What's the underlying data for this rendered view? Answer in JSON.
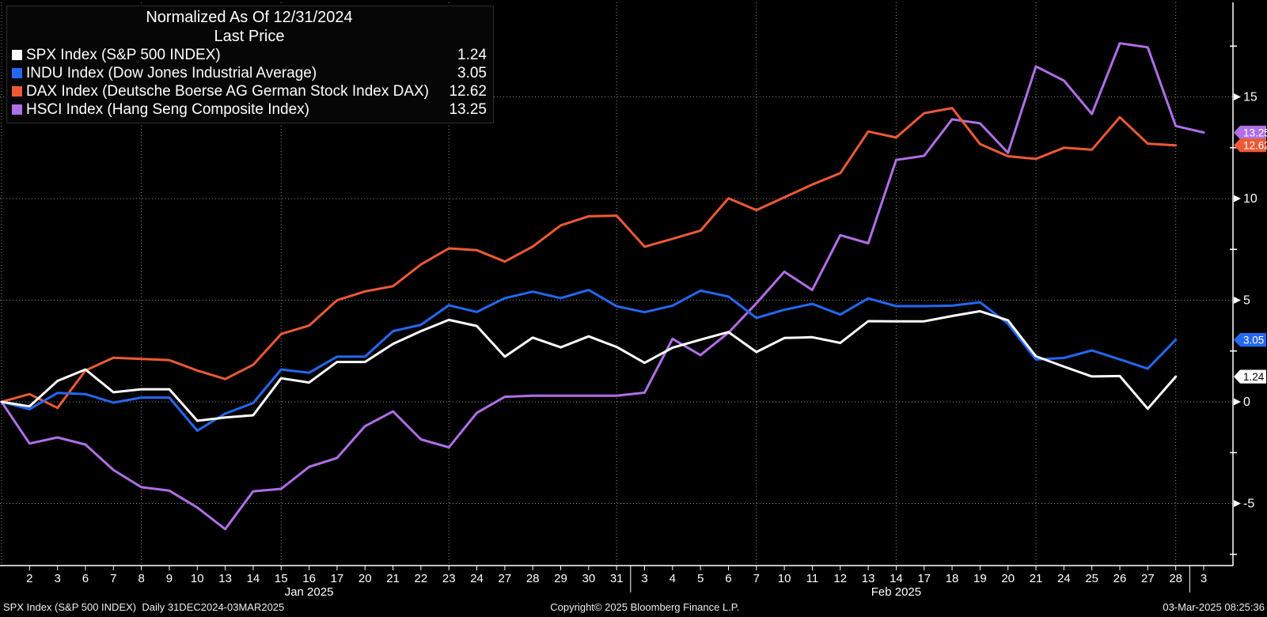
{
  "legend": {
    "title": "Normalized As Of 12/31/2024",
    "subtitle": "Last Price",
    "items": [
      {
        "label": "SPX Index (S&P 500 INDEX)",
        "value": "1.24",
        "color": "#ffffff"
      },
      {
        "label": "INDU Index (Dow Jones Industrial Average)",
        "value": "3.05",
        "color": "#2468f2"
      },
      {
        "label": "DAX Index (Deutsche Boerse AG German Stock Index DAX)",
        "value": "12.62",
        "color": "#ed5a35"
      },
      {
        "label": "HSCI Index (Hang Seng Composite Index)",
        "value": "13.25",
        "color": "#b06fe6"
      }
    ]
  },
  "chart_data": {
    "type": "line",
    "title": "Normalized As Of 12/31/2024 Last Price",
    "x_tick_labels": [
      "",
      "2",
      "3",
      "6",
      "7",
      "8",
      "9",
      "10",
      "13",
      "14",
      "15",
      "16",
      "17",
      "20",
      "21",
      "22",
      "23",
      "24",
      "27",
      "28",
      "29",
      "30",
      "31",
      "3",
      "4",
      "5",
      "6",
      "7",
      "10",
      "11",
      "12",
      "13",
      "14",
      "17",
      "18",
      "19",
      "20",
      "21",
      "24",
      "25",
      "26",
      "27",
      "28",
      "3"
    ],
    "month_labels": [
      {
        "text": "Jan 2025",
        "center_index": 11
      },
      {
        "text": "Feb 2025",
        "center_index": 32
      }
    ],
    "ylim": [
      -8.1,
      19.6
    ],
    "y_ticks_major": [
      15,
      10,
      5,
      0,
      -5
    ],
    "y_ticks_minor": [
      17.5,
      12.5,
      7.5,
      2.5,
      -2.5,
      -7.5
    ],
    "grid": true,
    "vertical_grid_indices": [
      0,
      5,
      10,
      16,
      22,
      27,
      32,
      37,
      42
    ],
    "month_separator_indices": [
      22.5,
      42.5
    ],
    "legend_position": "top-left",
    "series": [
      {
        "name": "HSCI Index (Hang Seng Composite Index)",
        "color": "#b06fe6",
        "last_price": "13.25",
        "values": [
          0,
          -2.05,
          -1.75,
          -2.1,
          -3.35,
          -4.2,
          -4.37,
          -5.2,
          -6.26,
          -4.4,
          -4.28,
          -3.2,
          -2.76,
          -1.2,
          -0.47,
          -1.85,
          -2.24,
          -0.54,
          0.25,
          0.3,
          0.3,
          0.3,
          0.3,
          0.45,
          3.1,
          2.3,
          3.4,
          4.85,
          6.4,
          5.5,
          8.2,
          7.8,
          11.9,
          12.1,
          13.9,
          13.7,
          12.25,
          16.5,
          15.8,
          14.16,
          17.64,
          17.44,
          13.57,
          13.25
        ]
      },
      {
        "name": "DAX Index (Deutsche Boerse AG German Stock Index DAX)",
        "color": "#ed5a35",
        "last_price": "12.62",
        "values": [
          0,
          0.38,
          -0.3,
          1.54,
          2.17,
          2.11,
          2.05,
          1.54,
          1.12,
          1.82,
          3.34,
          3.75,
          5.0,
          5.43,
          5.69,
          6.76,
          7.55,
          7.46,
          6.9,
          7.64,
          8.68,
          9.13,
          9.16,
          7.63,
          8.02,
          8.42,
          10.01,
          9.43,
          10.06,
          10.69,
          11.25,
          13.3,
          13.0,
          14.2,
          14.45,
          12.68,
          12.08,
          11.95,
          12.5,
          12.4,
          14.0,
          12.7,
          12.62,
          null
        ]
      },
      {
        "name": "INDU Index (Dow Jones Industrial Average)",
        "color": "#2468f2",
        "last_price": "3.05",
        "values": [
          0,
          -0.36,
          0.44,
          0.38,
          -0.04,
          0.21,
          0.21,
          -1.42,
          -0.58,
          -0.06,
          1.59,
          1.43,
          2.22,
          2.22,
          3.48,
          3.79,
          4.75,
          4.42,
          5.1,
          5.42,
          5.1,
          5.5,
          4.7,
          4.41,
          4.73,
          5.47,
          5.18,
          4.13,
          4.53,
          4.82,
          4.29,
          5.09,
          4.71,
          4.71,
          4.73,
          4.9,
          3.84,
          2.08,
          2.16,
          2.53,
          2.09,
          1.63,
          3.05,
          null
        ]
      },
      {
        "name": "SPX Index (S&P 500 INDEX)",
        "color": "#ffffff",
        "last_price": "1.24",
        "values": [
          0,
          -0.22,
          1.03,
          1.59,
          0.47,
          0.62,
          0.62,
          -0.93,
          -0.77,
          -0.66,
          1.16,
          0.95,
          1.96,
          1.96,
          2.85,
          3.48,
          4.03,
          3.73,
          2.22,
          3.16,
          2.68,
          3.22,
          2.7,
          1.92,
          2.66,
          3.06,
          3.43,
          2.45,
          3.14,
          3.18,
          2.9,
          3.97,
          3.96,
          3.96,
          4.22,
          4.46,
          4.01,
          2.24,
          1.73,
          1.25,
          1.27,
          -0.34,
          1.24,
          null
        ]
      }
    ]
  },
  "badges": [
    {
      "text": "13.25",
      "bg": "#b06fe6",
      "fg": "#ffffff",
      "value": 13.25
    },
    {
      "text": "12.62",
      "bg": "#ed5a35",
      "fg": "#ffffff",
      "value": 12.62
    },
    {
      "text": "3.05",
      "bg": "#2468f2",
      "fg": "#ffffff",
      "value": 3.05
    },
    {
      "text": "1.24",
      "bg": "#ffffff",
      "fg": "#000000",
      "value": 1.24
    }
  ],
  "footer": {
    "left": "SPX Index (S&P 500 INDEX)  Daily 31DEC2024-03MAR2025",
    "copyright": "Copyright© 2025 Bloomberg Finance L.P.",
    "timestamp": "03-Mar-2025 08:25:36"
  }
}
